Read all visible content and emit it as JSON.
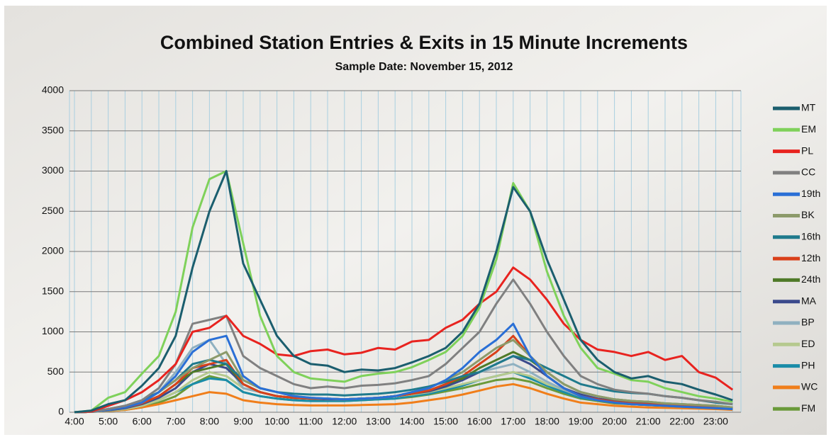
{
  "chart_data": {
    "type": "line",
    "title": "Combined Station Entries & Exits in 15 Minute Increments",
    "subtitle": "Sample Date: November 15, 2012",
    "categories": [
      "4:00",
      null,
      "5:00",
      null,
      "6:00",
      null,
      "7:00",
      null,
      "8:00",
      null,
      "9:00",
      null,
      "10:00",
      null,
      "11:00",
      null,
      "12:00",
      null,
      "13:00",
      null,
      "14:00",
      null,
      "15:00",
      null,
      "16:00",
      null,
      "17:00",
      null,
      "18:00",
      null,
      "19:00",
      null,
      "20:00",
      null,
      "21:00",
      null,
      "22:00",
      null,
      "23:00",
      null
    ],
    "ylim": [
      0,
      4000
    ],
    "yticks": [
      0,
      500,
      1000,
      1500,
      2000,
      2500,
      3000,
      3500,
      4000
    ],
    "grid": true,
    "legend": "right",
    "series": [
      {
        "name": "MT",
        "color": "#1b5e6e",
        "values": [
          0,
          20,
          100,
          150,
          330,
          550,
          950,
          1800,
          2500,
          3000,
          1850,
          1400,
          950,
          700,
          600,
          580,
          500,
          530,
          520,
          550,
          620,
          700,
          800,
          1000,
          1350,
          2000,
          2800,
          2500,
          1900,
          1400,
          900,
          650,
          500,
          420,
          450,
          380,
          350,
          280,
          220,
          150
        ]
      },
      {
        "name": "EM",
        "color": "#7fd15a",
        "values": [
          0,
          20,
          180,
          250,
          480,
          700,
          1250,
          2300,
          2900,
          3000,
          2100,
          1200,
          700,
          500,
          420,
          400,
          380,
          450,
          480,
          500,
          560,
          650,
          750,
          950,
          1300,
          1900,
          2850,
          2500,
          1750,
          1200,
          800,
          550,
          480,
          400,
          380,
          300,
          250,
          200,
          170,
          130
        ]
      },
      {
        "name": "PL",
        "color": "#e8231f",
        "values": [
          0,
          10,
          80,
          150,
          250,
          400,
          600,
          1000,
          1050,
          1200,
          950,
          850,
          720,
          700,
          760,
          780,
          720,
          740,
          800,
          780,
          880,
          900,
          1050,
          1150,
          1350,
          1500,
          1800,
          1650,
          1400,
          1100,
          900,
          780,
          750,
          700,
          750,
          650,
          700,
          500,
          430,
          280
        ]
      },
      {
        "name": "CC",
        "color": "#808080",
        "values": [
          0,
          5,
          40,
          80,
          150,
          300,
          600,
          1100,
          1150,
          1200,
          700,
          550,
          450,
          350,
          300,
          320,
          300,
          330,
          340,
          360,
          400,
          450,
          600,
          800,
          1000,
          1350,
          1650,
          1350,
          1000,
          700,
          450,
          350,
          280,
          250,
          230,
          200,
          180,
          150,
          130,
          100
        ]
      },
      {
        "name": "19th",
        "color": "#2a6fd6",
        "values": [
          0,
          5,
          30,
          60,
          120,
          250,
          450,
          750,
          900,
          950,
          450,
          300,
          250,
          200,
          180,
          170,
          160,
          170,
          180,
          200,
          250,
          300,
          400,
          550,
          750,
          900,
          1100,
          700,
          450,
          300,
          200,
          150,
          120,
          100,
          90,
          80,
          70,
          60,
          50,
          40
        ]
      },
      {
        "name": "BK",
        "color": "#8c9a6a",
        "values": [
          0,
          5,
          30,
          60,
          120,
          250,
          400,
          550,
          650,
          750,
          400,
          300,
          250,
          200,
          180,
          170,
          160,
          170,
          180,
          200,
          250,
          300,
          400,
          500,
          650,
          800,
          900,
          700,
          500,
          350,
          250,
          200,
          160,
          140,
          130,
          110,
          100,
          90,
          80,
          60
        ]
      },
      {
        "name": "16th",
        "color": "#1f7a8c",
        "values": [
          0,
          10,
          40,
          80,
          150,
          250,
          400,
          600,
          650,
          600,
          400,
          300,
          250,
          230,
          220,
          220,
          210,
          220,
          230,
          250,
          280,
          320,
          380,
          450,
          500,
          600,
          700,
          650,
          550,
          450,
          350,
          300,
          260,
          240,
          230,
          200,
          180,
          150,
          120,
          100
        ]
      },
      {
        "name": "12th",
        "color": "#d9401a",
        "values": [
          0,
          5,
          30,
          60,
          110,
          200,
          350,
          550,
          600,
          650,
          350,
          250,
          200,
          180,
          170,
          170,
          160,
          170,
          180,
          200,
          230,
          270,
          350,
          450,
          600,
          750,
          950,
          700,
          450,
          300,
          200,
          160,
          130,
          110,
          100,
          90,
          80,
          70,
          60,
          50
        ]
      },
      {
        "name": "24th",
        "color": "#4f7a28",
        "values": [
          0,
          5,
          30,
          60,
          110,
          200,
          350,
          500,
          550,
          600,
          350,
          250,
          200,
          180,
          170,
          170,
          160,
          170,
          180,
          200,
          230,
          270,
          350,
          420,
          550,
          650,
          750,
          650,
          500,
          350,
          250,
          200,
          160,
          140,
          130,
          110,
          100,
          90,
          80,
          60
        ]
      },
      {
        "name": "MA",
        "color": "#3b4a8c",
        "values": [
          0,
          5,
          25,
          50,
          100,
          180,
          300,
          500,
          600,
          550,
          350,
          250,
          200,
          180,
          170,
          160,
          160,
          170,
          180,
          200,
          230,
          260,
          320,
          400,
          500,
          600,
          700,
          600,
          450,
          300,
          220,
          170,
          140,
          120,
          110,
          100,
          90,
          80,
          70,
          50
        ]
      },
      {
        "name": "BP",
        "color": "#8fb0c0",
        "values": [
          0,
          5,
          30,
          60,
          120,
          250,
          500,
          800,
          900,
          600,
          300,
          250,
          200,
          180,
          170,
          160,
          160,
          170,
          180,
          200,
          230,
          270,
          330,
          420,
          500,
          550,
          600,
          500,
          380,
          280,
          200,
          160,
          130,
          110,
          100,
          90,
          80,
          70,
          60,
          50
        ]
      },
      {
        "name": "ED",
        "color": "#b5c98e",
        "values": [
          0,
          5,
          20,
          40,
          80,
          150,
          250,
          400,
          500,
          450,
          300,
          250,
          200,
          180,
          170,
          160,
          160,
          170,
          180,
          200,
          220,
          250,
          300,
          350,
          400,
          450,
          500,
          450,
          350,
          280,
          200,
          150,
          130,
          110,
          100,
          90,
          80,
          70,
          60,
          50
        ]
      },
      {
        "name": "PH",
        "color": "#1a8ca8",
        "values": [
          0,
          5,
          20,
          40,
          80,
          150,
          250,
          350,
          420,
          400,
          250,
          200,
          170,
          150,
          140,
          140,
          140,
          150,
          160,
          170,
          200,
          230,
          280,
          330,
          400,
          450,
          500,
          420,
          330,
          250,
          180,
          150,
          120,
          100,
          90,
          80,
          70,
          60,
          50,
          40
        ]
      },
      {
        "name": "WC",
        "color": "#f07e1a",
        "values": [
          0,
          5,
          15,
          30,
          60,
          100,
          150,
          200,
          250,
          230,
          150,
          120,
          100,
          90,
          85,
          85,
          85,
          90,
          95,
          100,
          120,
          150,
          180,
          220,
          270,
          320,
          350,
          300,
          230,
          170,
          120,
          100,
          80,
          70,
          60,
          55,
          50,
          45,
          40,
          30
        ]
      },
      {
        "name": "FM",
        "color": "#6a9a3a",
        "values": [
          0,
          5,
          15,
          30,
          60,
          120,
          200,
          350,
          450,
          400,
          250,
          200,
          170,
          150,
          140,
          140,
          140,
          150,
          160,
          170,
          190,
          220,
          260,
          300,
          350,
          400,
          420,
          380,
          300,
          230,
          170,
          140,
          110,
          100,
          90,
          80,
          70,
          60,
          50,
          40
        ]
      }
    ]
  }
}
